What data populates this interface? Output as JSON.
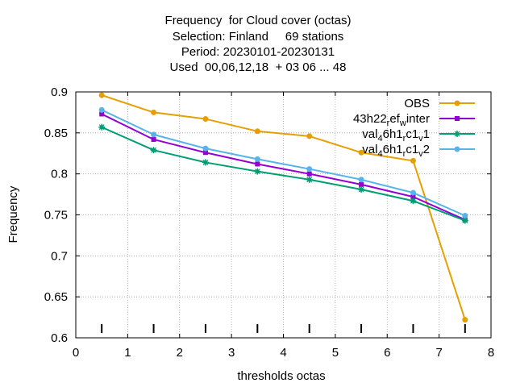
{
  "title_lines": [
    "Frequency  for Cloud cover (octas)",
    "Selection: Finland     69 stations",
    "Period: 20230101-20230131",
    "Used  00,06,12,18  + 03 06 ... 48"
  ],
  "chart_data": {
    "type": "line",
    "xlabel": "thresholds octas",
    "ylabel": "Frequency",
    "xlim": [
      0,
      8
    ],
    "ylim": [
      0.6,
      0.9
    ],
    "x_ticks": [
      "0",
      "1",
      "2",
      "3",
      "4",
      "5",
      "6",
      "7",
      "8"
    ],
    "y_ticks": [
      "0.6",
      "0.65",
      "0.7",
      "0.75",
      "0.8",
      "0.85",
      "0.9"
    ],
    "grid": true,
    "legend_position": "top-right",
    "threshold_markers_x": [
      0.5,
      1.5,
      2.5,
      3.5,
      4.5,
      5.5,
      6.5,
      7.5
    ],
    "x": [
      0.5,
      1.5,
      2.5,
      3.5,
      4.5,
      5.5,
      6.5,
      7.5
    ],
    "series": [
      {
        "name": "OBS",
        "legend": {
          "base": "OBS",
          "parts": []
        },
        "color": "#e69f00",
        "marker": "circle",
        "values": [
          0.896,
          0.875,
          0.867,
          0.852,
          0.846,
          0.826,
          0.816,
          0.622
        ]
      },
      {
        "name": "43h22_ref_winter",
        "legend": {
          "base": "43h22",
          "parts": [
            [
              "r",
              "ef"
            ],
            [
              "w",
              "inter"
            ]
          ]
        },
        "color": "#9400d3",
        "marker": "square",
        "values": [
          0.873,
          0.842,
          0.826,
          0.812,
          0.8,
          0.787,
          0.772,
          0.744
        ]
      },
      {
        "name": "val_46h1_rc1_v1",
        "legend": {
          "base": "val",
          "parts": [
            [
              "4",
              "6h1"
            ],
            [
              "r",
              "c1"
            ],
            [
              "v",
              "1"
            ]
          ]
        },
        "color": "#009e73",
        "marker": "star",
        "values": [
          0.857,
          0.829,
          0.814,
          0.803,
          0.793,
          0.781,
          0.767,
          0.743
        ]
      },
      {
        "name": "val_46h1_rc1_v2",
        "legend": {
          "base": "val",
          "parts": [
            [
              "4",
              "6h1"
            ],
            [
              "r",
              "c1"
            ],
            [
              "v",
              "2"
            ]
          ]
        },
        "color": "#56b4e9",
        "marker": "circle",
        "values": [
          0.878,
          0.848,
          0.831,
          0.818,
          0.806,
          0.793,
          0.777,
          0.749
        ]
      }
    ]
  }
}
